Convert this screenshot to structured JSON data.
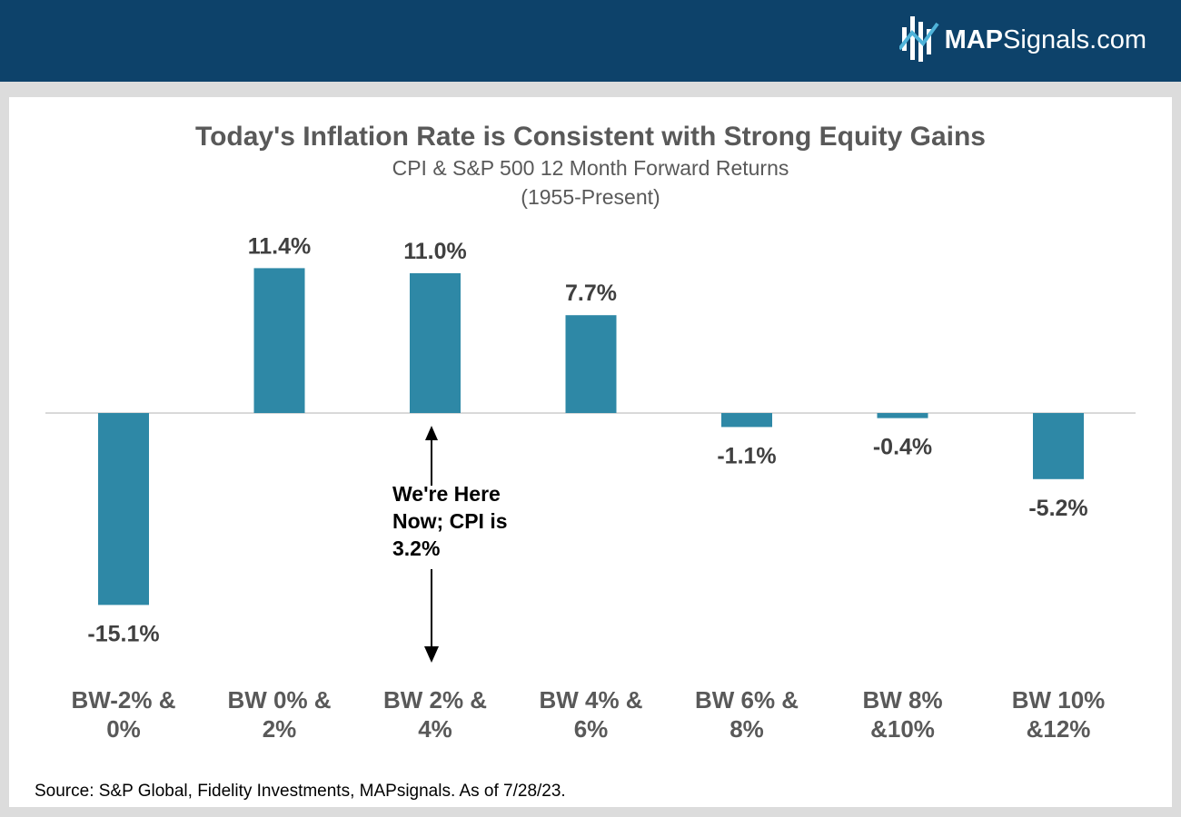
{
  "header": {
    "brand_bold": "MAP",
    "brand_rest": "Signals.com",
    "logo_icon": "mapsignals-logo-icon"
  },
  "chart_data": {
    "type": "bar",
    "title": "Today's Inflation Rate is Consistent with Strong Equity Gains",
    "subtitle": "CPI & S&P 500 12 Month Forward Returns",
    "subtitle2": "(1955-Present)",
    "categories": [
      [
        "BW-2% &",
        "0%"
      ],
      [
        "BW 0% &",
        "2%"
      ],
      [
        "BW 2% &",
        "4%"
      ],
      [
        "BW 4% &",
        "6%"
      ],
      [
        "BW 6% &",
        "8%"
      ],
      [
        "BW 8%",
        "&10%"
      ],
      [
        "BW 10%",
        "&12%"
      ]
    ],
    "values": [
      -15.1,
      11.4,
      11.0,
      7.7,
      -1.1,
      -0.4,
      -5.2
    ],
    "value_labels": [
      "-15.1%",
      "11.4%",
      "11.0%",
      "7.7%",
      "-1.1%",
      "-0.4%",
      "-5.2%"
    ],
    "bar_color": "#2e88a6",
    "ylim": [
      -15.1,
      11.4
    ],
    "grid": false,
    "annotation": {
      "category_index": 2,
      "lines": [
        "We're Here",
        "Now; CPI is",
        "3.2%"
      ]
    },
    "source": "Source: S&P Global, Fidelity Investments, MAPsignals. As of 7/28/23."
  }
}
